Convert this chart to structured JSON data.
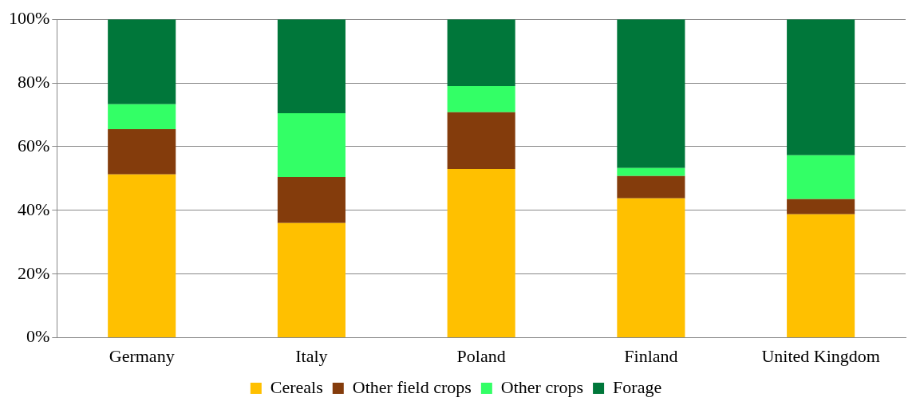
{
  "chart_data": {
    "type": "bar",
    "stacked": true,
    "categories": [
      "Germany",
      "Italy",
      "Poland",
      "Finland",
      "United Kingdom"
    ],
    "series": [
      {
        "name": "Cereals",
        "color": "#ffc000",
        "values": [
          51.3,
          36,
          53,
          43.8,
          38.8
        ]
      },
      {
        "name": "Other field crops",
        "color": "#843c0c",
        "values": [
          14.2,
          14.5,
          17.8,
          7,
          4.7
        ]
      },
      {
        "name": "Other crops",
        "color": "#33ff66",
        "values": [
          7.8,
          20,
          8.2,
          2.5,
          13.8
        ]
      },
      {
        "name": "Forage",
        "color": "#00773a",
        "values": [
          26.7,
          29.5,
          21,
          46.7,
          42.7
        ]
      }
    ],
    "ylim": [
      0,
      100
    ],
    "yticks": [
      {
        "value": 0,
        "label": "0%"
      },
      {
        "value": 20,
        "label": "20%"
      },
      {
        "value": 40,
        "label": "40%"
      },
      {
        "value": 60,
        "label": "60%"
      },
      {
        "value": 80,
        "label": "80%"
      },
      {
        "value": 100,
        "label": "100%"
      }
    ],
    "grid": "y",
    "legend": "bottom"
  }
}
